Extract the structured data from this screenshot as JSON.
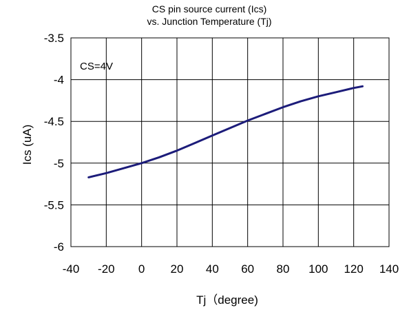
{
  "chart_data": {
    "type": "line",
    "title_lines": [
      "CS pin source current (Ics)",
      "vs. Junction Temperature (Tj)"
    ],
    "xlabel": "Tj（degree)",
    "ylabel": "Ics (uA)",
    "xlim": [
      -40,
      140
    ],
    "ylim": [
      -6,
      -3.5
    ],
    "xticks": [
      -40,
      -20,
      0,
      20,
      40,
      60,
      80,
      100,
      120,
      140
    ],
    "yticks": [
      -3.5,
      -4,
      -4.5,
      -5,
      -5.5,
      -6
    ],
    "grid": true,
    "annotation": "CS=4V",
    "line_color": "#1c1c7a",
    "series": [
      {
        "x": [
          -30,
          -20,
          -10,
          0,
          10,
          20,
          30,
          40,
          50,
          60,
          70,
          80,
          90,
          100,
          110,
          120,
          125
        ],
        "values": [
          -5.17,
          -5.12,
          -5.06,
          -5.0,
          -4.93,
          -4.85,
          -4.76,
          -4.67,
          -4.58,
          -4.49,
          -4.41,
          -4.33,
          -4.26,
          -4.2,
          -4.15,
          -4.1,
          -4.08
        ]
      }
    ]
  }
}
